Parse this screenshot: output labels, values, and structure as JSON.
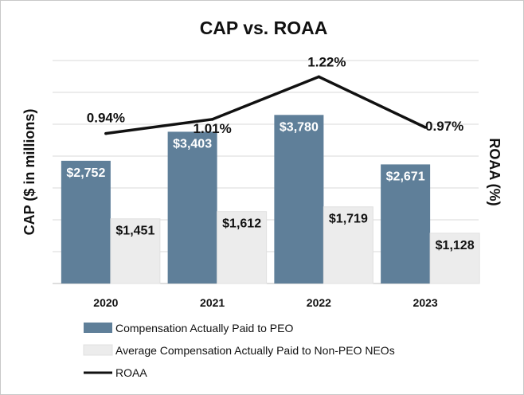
{
  "chart_data": {
    "type": "bar",
    "title": "CAP vs. ROAA",
    "ylabel": "CAP ($ in millions)",
    "y2label": "ROAA (%)",
    "categories": [
      "2020",
      "2021",
      "2022",
      "2023"
    ],
    "ylim": [
      0,
      5000
    ],
    "y2lim": [
      0.2,
      1.3
    ],
    "series": [
      {
        "name": "Compensation Actually Paid to PEO",
        "kind": "bar",
        "color": "#5f7f99",
        "values": [
          2752,
          3403,
          3780,
          2671
        ],
        "labels": [
          "$2,752",
          "$3,403",
          "$3,780",
          "$2,671"
        ]
      },
      {
        "name": "Average Compensation Actually Paid to Non-PEO NEOs",
        "kind": "bar",
        "color": "#ececec",
        "values": [
          1451,
          1612,
          1719,
          1128
        ],
        "labels": [
          "$1,451",
          "$1,612",
          "$1,719",
          "$1,128"
        ]
      },
      {
        "name": "ROAA",
        "kind": "line",
        "axis": "secondary",
        "color": "#111111",
        "values": [
          0.94,
          1.01,
          1.22,
          0.97
        ],
        "labels": [
          "0.94%",
          "1.01%",
          "1.22%",
          "0.97%"
        ]
      }
    ],
    "grid": true,
    "legend": "bottom"
  }
}
